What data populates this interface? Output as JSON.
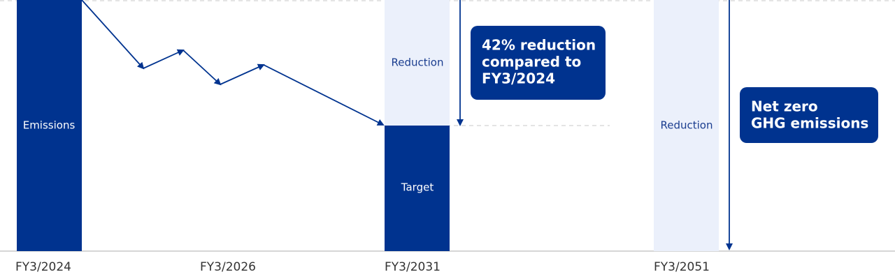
{
  "columns": [
    {
      "year": "FY3/2024",
      "segments": [
        "Emissions"
      ]
    },
    {
      "year": "FY3/2026"
    },
    {
      "year": "FY3/2031",
      "segments": [
        "Reduction",
        "Target"
      ]
    },
    {
      "year": "FY3/2051",
      "segments": [
        "Reduction"
      ]
    }
  ],
  "callouts": [
    {
      "lines": [
        "42% reduction",
        "compared to",
        "FY3/2024"
      ]
    },
    {
      "lines": [
        "Net zero",
        "GHG emissions"
      ]
    }
  ]
}
